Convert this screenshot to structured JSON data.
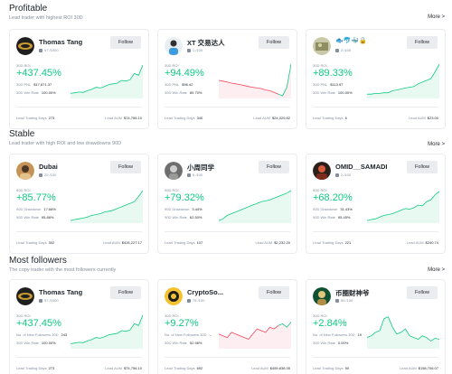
{
  "sections": [
    {
      "title": "Profitable",
      "subtitle": "Lead trader with highest ROI 30D",
      "more": "More >",
      "cards": [
        {
          "name": "Thomas Tang",
          "followers": "97 /1000",
          "follow": "Follow",
          "roi_label": "30D ROI",
          "roi": "+437.45%",
          "m1_label": "30D PNL",
          "m1_value": "$17,871.37",
          "m2_label": "30D Win Rate",
          "m2_value": "100.00%",
          "days_label": "Lead Trading Days",
          "days": "273",
          "aum_label": "Lead AUM",
          "aum": "$74,756.10",
          "spark": [
            0.12,
            0.14,
            0.16,
            0.15,
            0.2,
            0.24,
            0.3,
            0.28,
            0.32,
            0.38,
            0.4,
            0.42,
            0.5,
            0.48,
            0.52,
            0.7,
            0.65,
            0.95
          ],
          "trend": "up"
        },
        {
          "name": "XT 交易达人",
          "followers": "1 /100",
          "follow": "Follow",
          "roi_label": "30D ROI",
          "roi": "+94.49%",
          "m1_label": "30D PNL",
          "m1_value": "$96.42",
          "m2_label": "30D Win Rate",
          "m2_value": "89.70%",
          "days_label": "Lead Trading Days",
          "days": "340",
          "aum_label": "Lead AUM",
          "aum": "$24,029.82",
          "spark": [
            0.5,
            0.48,
            0.45,
            0.42,
            0.4,
            0.38,
            0.35,
            0.32,
            0.3,
            0.28,
            0.26,
            0.22,
            0.2,
            0.15,
            0.1,
            0.05,
            0.3,
            0.98
          ],
          "trend": "mixed"
        },
        {
          "name": "",
          "followers": "2 /100",
          "follow": "Follow",
          "roi_label": "30D ROI",
          "roi": "+89.33%",
          "m1_label": "30D PNL",
          "m1_value": "$113.97",
          "m2_label": "30D Win Rate",
          "m2_value": "100.00%",
          "days_label": "Lead Trading Days",
          "days": "6",
          "aum_label": "Lead AUM",
          "aum": "$23.00",
          "spark": [
            0.1,
            0.1,
            0.12,
            0.12,
            0.14,
            0.14,
            0.2,
            0.22,
            0.25,
            0.28,
            0.3,
            0.32,
            0.4,
            0.45,
            0.5,
            0.55,
            0.75,
            0.97
          ],
          "trend": "up",
          "name_icons": "🐟🐬🐳🔒"
        }
      ]
    },
    {
      "title": "Stable",
      "subtitle": "Lead trader with high ROI and low drawdowns 90D",
      "more": "More >",
      "cards": [
        {
          "name": "Dubai",
          "followers": "20 /100",
          "follow": "Follow",
          "roi_label": "90D ROI",
          "roi": "+85.77%",
          "m1_label": "90D Drawdown",
          "m1_value": "17.68%",
          "m2_label": "90D Win Rate",
          "m2_value": "95.86%",
          "days_label": "Lead Trading Days",
          "days": "302",
          "aum_label": "Lead AUM",
          "aum": "$426,227.17",
          "spark": [
            0.05,
            0.08,
            0.1,
            0.12,
            0.15,
            0.2,
            0.22,
            0.25,
            0.3,
            0.32,
            0.35,
            0.4,
            0.45,
            0.5,
            0.55,
            0.6,
            0.75,
            0.92
          ],
          "trend": "up"
        },
        {
          "name": "小周同学",
          "followers": "6 /100",
          "follow": "Follow",
          "roi_label": "90D ROI",
          "roi": "+79.32%",
          "m1_label": "90D Drawdown",
          "m1_value": "3.44%",
          "m2_label": "90D Win Rate",
          "m2_value": "62.50%",
          "days_label": "Lead Trading Days",
          "days": "107",
          "aum_label": "Lead AUM",
          "aum": "$2,232.20",
          "spark": [
            0.05,
            0.1,
            0.2,
            0.25,
            0.3,
            0.35,
            0.4,
            0.45,
            0.5,
            0.55,
            0.6,
            0.62,
            0.65,
            0.7,
            0.75,
            0.8,
            0.85,
            0.92
          ],
          "trend": "up"
        },
        {
          "name": "OMID__SAMADI",
          "followers": "2 /100",
          "follow": "Follow",
          "roi_label": "90D ROI",
          "roi": "+68.20%",
          "m1_label": "90D Drawdown",
          "m1_value": "31.43%",
          "m2_label": "90D Win Rate",
          "m2_value": "95.45%",
          "days_label": "Lead Trading Days",
          "days": "221",
          "aum_label": "Lead AUM",
          "aum": "$240.74",
          "spark": [
            0.05,
            0.08,
            0.1,
            0.15,
            0.2,
            0.22,
            0.25,
            0.3,
            0.35,
            0.4,
            0.38,
            0.42,
            0.5,
            0.48,
            0.6,
            0.65,
            0.8,
            0.9
          ],
          "trend": "up"
        }
      ]
    },
    {
      "title": "Most followers",
      "subtitle": "The copy trader with the most followers currently",
      "more": "More >",
      "cards": [
        {
          "name": "Thomas Tang",
          "followers": "97 /1000",
          "follow": "Follow",
          "roi_label": "30D ROI",
          "roi": "+437.45%",
          "m1_label": "No. of New Followers 30D",
          "m1_value": "243",
          "m2_label": "30D Win Rate",
          "m2_value": "100.00%",
          "days_label": "Lead Trading Days",
          "days": "273",
          "aum_label": "Lead AUM",
          "aum": "$74,756.10",
          "spark": [
            0.12,
            0.14,
            0.16,
            0.15,
            0.2,
            0.24,
            0.3,
            0.28,
            0.32,
            0.38,
            0.4,
            0.42,
            0.5,
            0.48,
            0.52,
            0.7,
            0.65,
            0.95
          ],
          "trend": "up"
        },
        {
          "name": "CryptoSo...",
          "followers": "75 /100",
          "follow": "Follow",
          "roi_label": "30D ROI",
          "roi": "+9.27%",
          "m1_label": "No. of New Followers 30D",
          "m1_value": "--",
          "m2_label": "30D Win Rate",
          "m2_value": "52.96%",
          "days_label": "Lead Trading Days",
          "days": "692",
          "aum_label": "Lead AUM",
          "aum": "$459,838.35",
          "spark": [
            0.4,
            0.35,
            0.3,
            0.45,
            0.4,
            0.35,
            0.3,
            0.25,
            0.4,
            0.55,
            0.5,
            0.45,
            0.6,
            0.55,
            0.65,
            0.7,
            0.6,
            0.75
          ],
          "trend": "mixed2"
        },
        {
          "name": "币圈财神爷",
          "followers": "59 /100",
          "follow": "Follow",
          "roi_label": "30D ROI",
          "roi": "+2.84%",
          "m1_label": "No. of New Followers 30D",
          "m1_value": "19",
          "m2_label": "30D Win Rate",
          "m2_value": "0.00%",
          "days_label": "Lead Trading Days",
          "days": "90",
          "aum_label": "Lead AUM",
          "aum": "$158,706.07",
          "spark": [
            0.3,
            0.35,
            0.45,
            0.5,
            0.85,
            0.9,
            0.6,
            0.4,
            0.45,
            0.55,
            0.35,
            0.3,
            0.25,
            0.35,
            0.3,
            0.2,
            0.28,
            0.25
          ],
          "trend": "up"
        }
      ]
    }
  ]
}
